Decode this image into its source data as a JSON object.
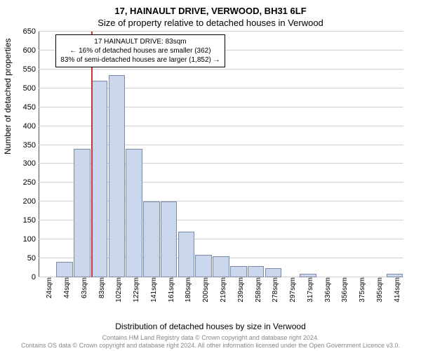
{
  "title_main": "17, HAINAULT DRIVE, VERWOOD, BH31 6LF",
  "title_sub": "Size of property relative to detached houses in Verwood",
  "y_label": "Number of detached properties",
  "x_label": "Distribution of detached houses by size in Verwood",
  "footer_line1": "Contains HM Land Registry data © Crown copyright and database right 2024.",
  "footer_line2": "Contains OS data © Crown copyright and database right 2024. All other information licensed under the Open Government Licence v3.0.",
  "chart": {
    "type": "histogram",
    "background_color": "#ffffff",
    "grid_color": "#d0d0d0",
    "bar_fill": "#c9d6ec",
    "bar_stroke": "#7a8aa8",
    "marker_color": "#cc3333",
    "ylim": [
      0,
      650
    ],
    "ytick_step": 50,
    "x_categories": [
      "24sqm",
      "44sqm",
      "63sqm",
      "83sqm",
      "102sqm",
      "122sqm",
      "141sqm",
      "161sqm",
      "180sqm",
      "200sqm",
      "219sqm",
      "239sqm",
      "258sqm",
      "278sqm",
      "297sqm",
      "317sqm",
      "336sqm",
      "356sqm",
      "375sqm",
      "395sqm",
      "414sqm"
    ],
    "values": [
      0,
      40,
      340,
      520,
      535,
      340,
      200,
      200,
      120,
      60,
      55,
      30,
      30,
      25,
      0,
      10,
      0,
      0,
      0,
      0,
      10
    ],
    "marker_index": 3,
    "annotation_box_index": 3,
    "title_fontsize": 13,
    "label_fontsize": 12,
    "tick_fontsize": 10,
    "annotation_fontsize": 10
  },
  "annotation": {
    "line1": "17 HAINAULT DRIVE: 83sqm",
    "line2": "← 16% of detached houses are smaller (362)",
    "line3": "83% of semi-detached houses are larger (1,852) →"
  }
}
